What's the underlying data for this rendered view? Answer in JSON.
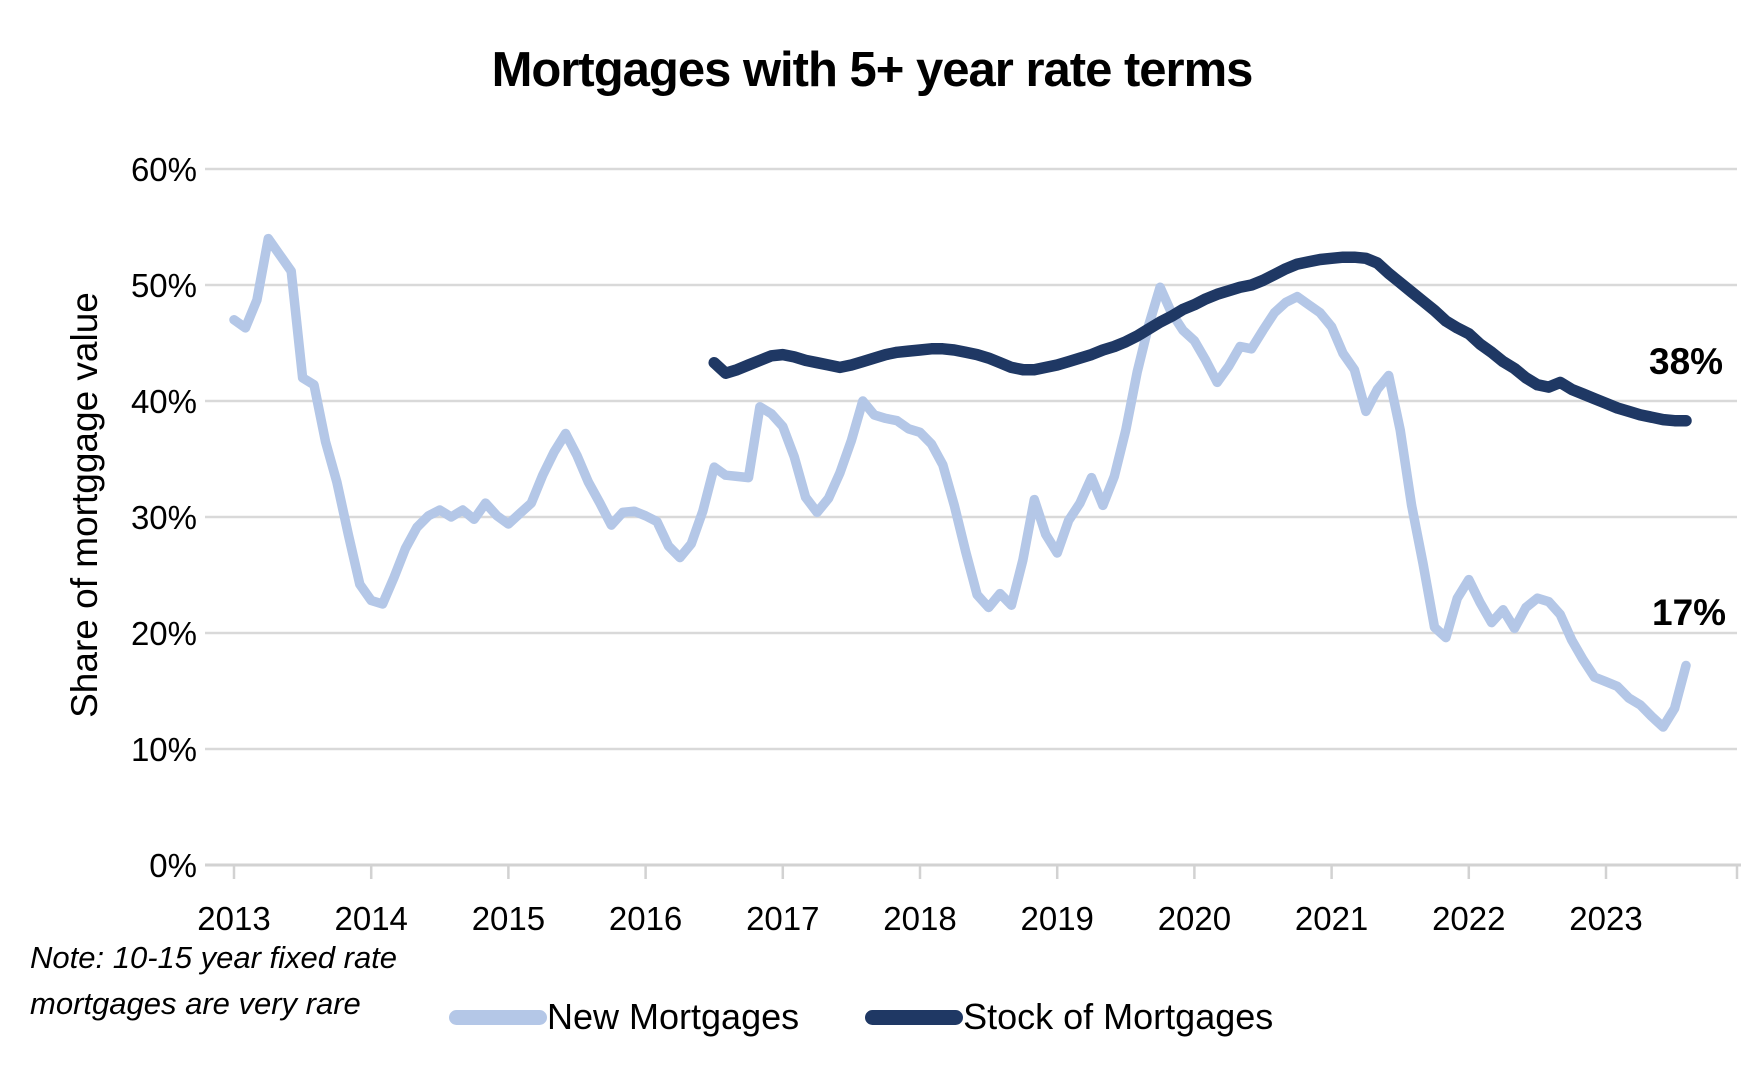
{
  "chart_data": {
    "type": "line",
    "title": "Mortgages with 5+ year rate terms",
    "ylabel": "Share of mortggage value",
    "xlabel": "",
    "grid": true,
    "legend_position": "bottom",
    "note": [
      "Note: 10-15 year fixed rate",
      "mortgages are very rare"
    ],
    "x_axis": {
      "years": [
        "2013",
        "2014",
        "2015",
        "2016",
        "2017",
        "2018",
        "2019",
        "2020",
        "2021",
        "2022",
        "2023"
      ],
      "start": "2013-01",
      "end": "2023-08",
      "frequency": "monthly"
    },
    "y_axis": {
      "tick_labels": [
        "0%",
        "10%",
        "20%",
        "30%",
        "40%",
        "50%",
        "60%"
      ],
      "tick_values": [
        0,
        10,
        20,
        30,
        40,
        50,
        60
      ],
      "min": 0,
      "max": 60
    },
    "colors": {
      "new_mortgages": "#b4c7e7",
      "stock_of_mortgages": "#1f3864",
      "gridline": "#d9d9d9",
      "axis": "#d2d2d2",
      "text": "#000000"
    },
    "series": [
      {
        "name": "New Mortgages",
        "color": "#b4c7e7",
        "start_month": "2013-01",
        "start_month_index": 0,
        "end_label": "17%",
        "values": [
          47.0,
          46.3,
          48.7,
          54.0,
          52.6,
          51.2,
          42.0,
          41.4,
          36.5,
          33.0,
          28.5,
          24.2,
          22.8,
          22.5,
          24.8,
          27.3,
          29.1,
          30.1,
          30.6,
          30.0,
          30.6,
          29.8,
          31.2,
          30.1,
          29.4,
          30.3,
          31.2,
          33.6,
          35.6,
          37.2,
          35.3,
          33.0,
          31.2,
          29.3,
          30.4,
          30.5,
          30.1,
          29.6,
          27.5,
          26.5,
          27.7,
          30.5,
          34.3,
          33.6,
          33.5,
          33.4,
          39.5,
          38.9,
          37.8,
          35.2,
          31.7,
          30.4,
          31.6,
          33.8,
          36.6,
          40.0,
          38.8,
          38.5,
          38.3,
          37.6,
          37.3,
          36.3,
          34.5,
          31.0,
          27.0,
          23.3,
          22.2,
          23.4,
          22.4,
          26.3,
          31.5,
          28.5,
          26.9,
          29.7,
          31.2,
          33.4,
          31.0,
          33.5,
          37.5,
          42.5,
          46.5,
          49.8,
          47.6,
          46.1,
          45.2,
          43.5,
          41.6,
          43.0,
          44.7,
          44.5,
          46.1,
          47.6,
          48.5,
          49.0,
          48.3,
          47.6,
          46.4,
          44.1,
          42.7,
          39.1,
          41.0,
          42.2,
          37.5,
          31.0,
          26.0,
          20.5,
          19.6,
          23.0,
          24.6,
          22.6,
          20.9,
          22.0,
          20.4,
          22.2,
          23.0,
          22.7,
          21.6,
          19.4,
          17.7,
          16.2,
          15.8,
          15.4,
          14.4,
          13.8,
          12.8,
          11.9,
          13.5,
          17.2
        ]
      },
      {
        "name": "Stock of Mortgages",
        "color": "#1f3864",
        "start_month": "2016-07",
        "start_month_index": 42,
        "end_label": "38%",
        "values": [
          43.3,
          42.4,
          42.7,
          43.1,
          43.5,
          43.9,
          44.0,
          43.8,
          43.5,
          43.3,
          43.1,
          42.9,
          43.1,
          43.4,
          43.7,
          44.0,
          44.2,
          44.3,
          44.4,
          44.5,
          44.5,
          44.4,
          44.2,
          44.0,
          43.7,
          43.3,
          42.9,
          42.7,
          42.7,
          42.9,
          43.1,
          43.4,
          43.7,
          44.0,
          44.4,
          44.7,
          45.1,
          45.6,
          46.2,
          46.8,
          47.3,
          47.9,
          48.3,
          48.8,
          49.2,
          49.5,
          49.8,
          50.0,
          50.4,
          50.9,
          51.4,
          51.8,
          52.0,
          52.2,
          52.3,
          52.4,
          52.4,
          52.3,
          51.9,
          51.0,
          50.2,
          49.4,
          48.6,
          47.8,
          46.9,
          46.3,
          45.8,
          44.9,
          44.2,
          43.4,
          42.8,
          42.0,
          41.4,
          41.2,
          41.6,
          41.0,
          40.6,
          40.2,
          39.8,
          39.4,
          39.1,
          38.8,
          38.6,
          38.4,
          38.3,
          38.3
        ]
      }
    ]
  }
}
